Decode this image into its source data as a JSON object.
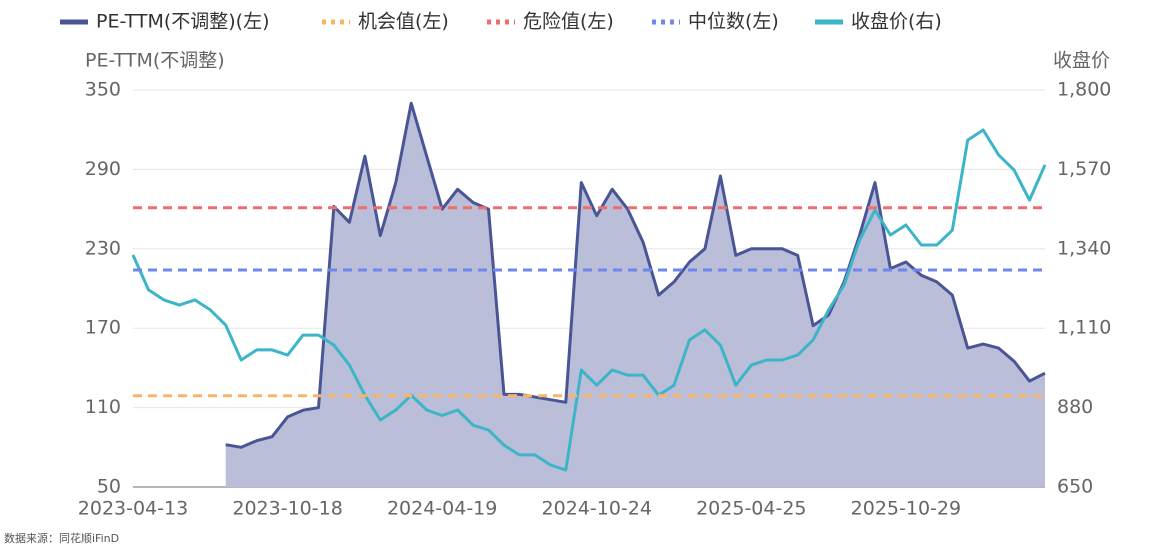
{
  "chart_data": {
    "type": "line",
    "categories": [
      "2023-04-13",
      null,
      null,
      null,
      null,
      null,
      null,
      null,
      null,
      null,
      "2023-10-18",
      null,
      null,
      null,
      null,
      null,
      null,
      null,
      null,
      null,
      "2024-04-19",
      null,
      null,
      null,
      null,
      null,
      null,
      null,
      null,
      null,
      "2024-10-24",
      null,
      null,
      null,
      null,
      null,
      null,
      null,
      null,
      null,
      "2025-04-25",
      null,
      null,
      null,
      null,
      null,
      null,
      null,
      null,
      null,
      "2025-10-29",
      null,
      null,
      null,
      null,
      null,
      null,
      null,
      null,
      null
    ],
    "series": [
      {
        "name": "PE-TTM(不调整)(左)",
        "color": "#4a5596",
        "area_color": "#bbbed8",
        "axis": "y",
        "values": [
          null,
          null,
          null,
          null,
          null,
          null,
          82,
          80,
          85,
          88,
          103,
          108,
          110,
          262,
          250,
          300,
          240,
          280,
          340,
          300,
          260,
          275,
          265,
          260,
          120,
          120,
          118,
          116,
          114,
          280,
          255,
          275,
          260,
          235,
          195,
          205,
          220,
          230,
          285,
          225,
          230,
          230,
          230,
          225,
          172,
          180,
          205,
          240,
          280,
          215,
          220,
          210,
          205,
          195,
          155,
          158,
          155,
          145,
          130,
          136
        ]
      },
      {
        "name": "收盘价(右)",
        "color": "#3db5c8",
        "axis": "y2",
        "values": [
          1322,
          1221,
          1192,
          1177,
          1192,
          1163,
          1119,
          1018,
          1047,
          1047,
          1032,
          1090,
          1090,
          1061,
          1003,
          916,
          844,
          873,
          916,
          873,
          857,
          873,
          829,
          815,
          771,
          743,
          743,
          714,
          699,
          989,
          945,
          989,
          974,
          974,
          916,
          945,
          1076,
          1105,
          1061,
          945,
          1003,
          1018,
          1018,
          1032,
          1076,
          1163,
          1235,
          1365,
          1452,
          1380,
          1409,
          1351,
          1351,
          1394,
          1655,
          1684,
          1612,
          1568,
          1481,
          1583
        ]
      }
    ],
    "reference_lines": [
      {
        "name": "机会值(左)",
        "color": "#f7b56a",
        "value": 119
      },
      {
        "name": "危险值(左)",
        "color": "#ee6e6e",
        "value": 261
      },
      {
        "name": "中位数(左)",
        "color": "#6f86ec",
        "value": 214
      }
    ],
    "y_label": "PE-TTM(不调整)",
    "y2_label": "收盘价",
    "ylim": [
      50,
      350
    ],
    "yticks": [
      50,
      110,
      170,
      230,
      290,
      350
    ],
    "y2lim": [
      650,
      1800
    ],
    "y2ticks": [
      650,
      880,
      {
        "value": 1110,
        "label": "1,110"
      },
      {
        "value": 1340,
        "label": "1,340"
      },
      {
        "value": 1570,
        "label": "1,570"
      },
      {
        "value": 1800,
        "label": "1,800"
      }
    ],
    "grid": true,
    "source": "数据来源：同花顺iFinD"
  }
}
